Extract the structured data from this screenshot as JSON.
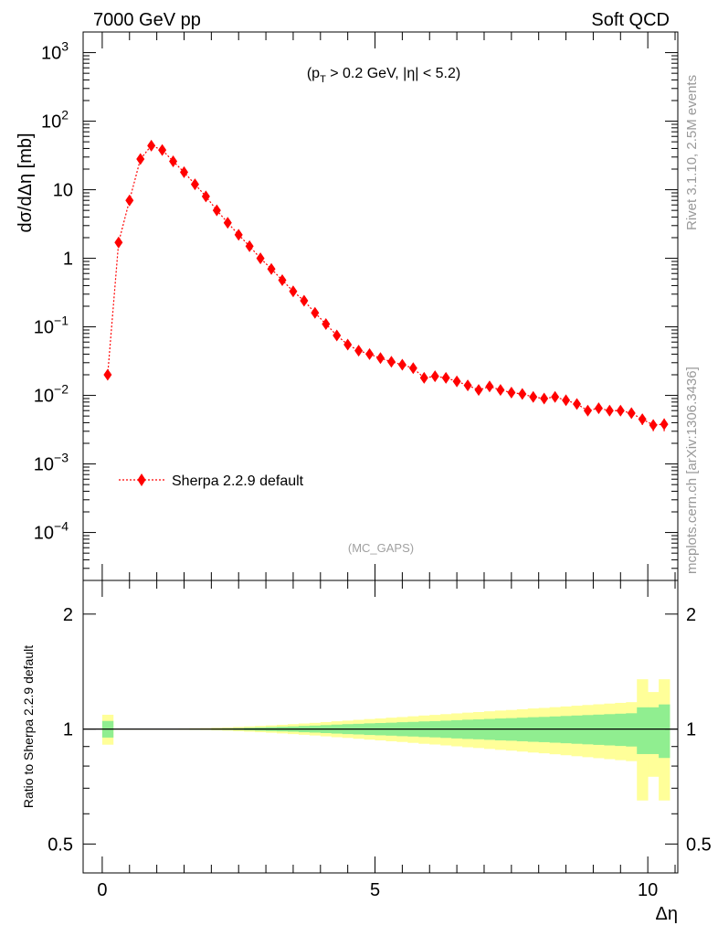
{
  "header": {
    "left": "7000 GeV pp",
    "right": "Soft QCD"
  },
  "side_labels": {
    "top": "Rivet 3.1.10,  2.5M events",
    "bottom": "mcplots.cern.ch [arXiv:1306.3436]"
  },
  "main_panel": {
    "cut_text": {
      "pre": "(p",
      "sub": "T",
      "post": " > 0.2 GeV, |η| < 5.2)"
    },
    "watermark": "(MC_GAPS)",
    "legend_label": "Sherpa 2.2.9 default",
    "series_color": "#ff0000"
  },
  "chart_data": [
    {
      "type": "scatter",
      "title": "",
      "xlabel": "",
      "ylabel": "dσ/dΔη [mb]",
      "yscale": "log",
      "xlim": [
        -0.35,
        10.55
      ],
      "ylim": [
        2e-05,
        2000
      ],
      "ytick_labels": [
        {
          "value": 0.0001,
          "base": "10",
          "exp": "−4"
        },
        {
          "value": 0.001,
          "base": "10",
          "exp": "−3"
        },
        {
          "value": 0.01,
          "base": "10",
          "exp": "−2"
        },
        {
          "value": 0.1,
          "base": "10",
          "exp": "−1"
        },
        {
          "value": 1,
          "base": "1",
          "exp": ""
        },
        {
          "value": 10,
          "base": "10",
          "exp": ""
        },
        {
          "value": 100,
          "base": "10",
          "exp": "2"
        },
        {
          "value": 1000,
          "base": "10",
          "exp": "3"
        }
      ],
      "grid": false,
      "legend": "bottom-left",
      "series": [
        {
          "name": "Sherpa 2.2.9 default",
          "color": "#ff0000",
          "marker": "diamond",
          "line": "dotted",
          "x": [
            0.1,
            0.3,
            0.5,
            0.7,
            0.9,
            1.1,
            1.3,
            1.5,
            1.7,
            1.9,
            2.1,
            2.3,
            2.5,
            2.7,
            2.9,
            3.1,
            3.3,
            3.5,
            3.7,
            3.9,
            4.1,
            4.3,
            4.5,
            4.7,
            4.9,
            5.1,
            5.3,
            5.5,
            5.7,
            5.9,
            6.1,
            6.3,
            6.5,
            6.7,
            6.9,
            7.1,
            7.3,
            7.5,
            7.7,
            7.9,
            8.1,
            8.3,
            8.5,
            8.7,
            8.9,
            9.1,
            9.3,
            9.5,
            9.7,
            9.9,
            10.1,
            10.3
          ],
          "y": [
            0.02,
            1.7,
            7.0,
            28,
            44,
            38,
            26,
            18,
            12,
            8,
            5,
            3.3,
            2.2,
            1.5,
            1.0,
            0.7,
            0.48,
            0.33,
            0.24,
            0.16,
            0.11,
            0.075,
            0.055,
            0.045,
            0.04,
            0.035,
            0.031,
            0.028,
            0.025,
            0.018,
            0.019,
            0.018,
            0.016,
            0.014,
            0.012,
            0.0135,
            0.012,
            0.011,
            0.0105,
            0.0095,
            0.009,
            0.0095,
            0.0085,
            0.0075,
            0.006,
            0.0065,
            0.006,
            0.006,
            0.0055,
            0.0045,
            0.0037,
            0.0038
          ],
          "y_err_low": [
            0.002,
            0.1,
            0.4,
            1.5,
            2,
            2,
            1.3,
            0.9,
            0.6,
            0.4,
            0.25,
            0.17,
            0.11,
            0.08,
            0.05,
            0.035,
            0.025,
            0.017,
            0.012,
            0.008,
            0.006,
            0.004,
            0.003,
            0.0025,
            0.0022,
            0.002,
            0.0018,
            0.0017,
            0.0016,
            0.0012,
            0.0013,
            0.0012,
            0.0011,
            0.001,
            0.0009,
            0.001,
            0.0009,
            0.0009,
            0.0009,
            0.0008,
            0.0008,
            0.0009,
            0.0008,
            0.0007,
            0.0006,
            0.0007,
            0.0007,
            0.0007,
            0.0007,
            0.0008,
            0.0007,
            0.0008
          ],
          "y_err_high": [
            0.002,
            0.1,
            0.4,
            1.5,
            2,
            2,
            1.3,
            0.9,
            0.6,
            0.4,
            0.25,
            0.17,
            0.11,
            0.08,
            0.05,
            0.035,
            0.025,
            0.017,
            0.012,
            0.008,
            0.006,
            0.004,
            0.003,
            0.0025,
            0.0022,
            0.002,
            0.0018,
            0.0017,
            0.0016,
            0.0012,
            0.0013,
            0.0012,
            0.0011,
            0.001,
            0.0009,
            0.001,
            0.0009,
            0.0009,
            0.0009,
            0.0008,
            0.0008,
            0.0009,
            0.0008,
            0.0007,
            0.0006,
            0.0007,
            0.0007,
            0.0007,
            0.0007,
            0.0008,
            0.0007,
            0.0008
          ]
        }
      ]
    },
    {
      "type": "area",
      "title": "",
      "xlabel": "Δη",
      "ylabel": "Ratio to Sherpa 2.2.9 default",
      "yscale": "log",
      "xlim": [
        -0.35,
        10.55
      ],
      "ylim": [
        0.42,
        2.45
      ],
      "xticks": [
        0,
        5,
        10
      ],
      "xtick_labels": [
        "0",
        "5",
        "10"
      ],
      "yticks": [
        0.5,
        1,
        2
      ],
      "ytick_labels": [
        "0.5",
        "1",
        "2"
      ],
      "reference_line": 1,
      "bin_edges": [
        0,
        0.2,
        0.4,
        0.6,
        0.8,
        1.0,
        1.2,
        1.4,
        1.6,
        1.8,
        2.0,
        2.2,
        2.4,
        2.6,
        2.8,
        3.0,
        3.2,
        3.4,
        3.6,
        3.8,
        4.0,
        4.2,
        4.4,
        4.6,
        4.8,
        5.0,
        5.2,
        5.4,
        5.6,
        5.8,
        6.0,
        6.2,
        6.4,
        6.6,
        6.8,
        7.0,
        7.2,
        7.4,
        7.6,
        7.8,
        8.0,
        8.2,
        8.4,
        8.6,
        8.8,
        9.0,
        9.2,
        9.4,
        9.6,
        9.8,
        10.0,
        10.2,
        10.4
      ],
      "bands": [
        {
          "name": "stat",
          "color": "#90ee90",
          "half_width": [
            0.05,
            0.002,
            0.002,
            0.002,
            0.002,
            0.002,
            0.002,
            0.002,
            0.003,
            0.003,
            0.004,
            0.005,
            0.006,
            0.008,
            0.01,
            0.012,
            0.014,
            0.016,
            0.019,
            0.021,
            0.024,
            0.027,
            0.03,
            0.032,
            0.035,
            0.037,
            0.039,
            0.042,
            0.044,
            0.047,
            0.049,
            0.052,
            0.055,
            0.058,
            0.06,
            0.063,
            0.066,
            0.068,
            0.071,
            0.074,
            0.076,
            0.079,
            0.082,
            0.085,
            0.088,
            0.091,
            0.094,
            0.097,
            0.1,
            0.14,
            0.14,
            0.16
          ]
        },
        {
          "name": "stat+syst",
          "color": "#ffff99",
          "half_width": [
            0.09,
            0.003,
            0.003,
            0.003,
            0.003,
            0.003,
            0.003,
            0.004,
            0.005,
            0.006,
            0.008,
            0.01,
            0.013,
            0.016,
            0.019,
            0.022,
            0.026,
            0.03,
            0.034,
            0.038,
            0.043,
            0.048,
            0.052,
            0.057,
            0.062,
            0.066,
            0.071,
            0.075,
            0.08,
            0.085,
            0.089,
            0.094,
            0.099,
            0.104,
            0.108,
            0.113,
            0.118,
            0.122,
            0.127,
            0.132,
            0.136,
            0.141,
            0.146,
            0.151,
            0.156,
            0.161,
            0.166,
            0.171,
            0.176,
            0.35,
            0.25,
            0.35
          ]
        }
      ]
    }
  ]
}
